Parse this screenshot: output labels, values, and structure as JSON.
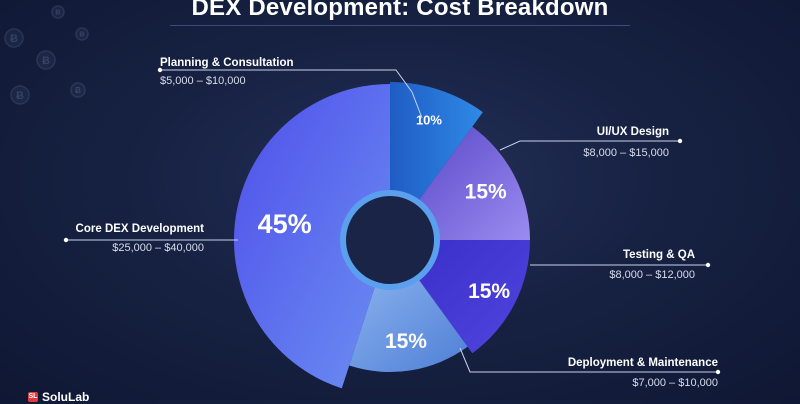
{
  "chart_data": {
    "type": "pie",
    "title": "DEX Development: Cost Breakdown",
    "slices": [
      {
        "name": "Planning & Consultation",
        "range": "$5,000 – $10,000",
        "value": 10,
        "label": "10%",
        "color": "#2c6fd6"
      },
      {
        "name": "UI/UX Design",
        "range": "$8,000 – $15,000",
        "value": 15,
        "label": "15%",
        "color": "#7b67e0"
      },
      {
        "name": "Testing & QA",
        "range": "$8,000 – $12,000",
        "value": 15,
        "label": "15%",
        "color": "#4a3fd9"
      },
      {
        "name": "Deployment & Maintenance",
        "range": "$7,000 – $10,000",
        "value": 15,
        "label": "15%",
        "color": "#6e9ee6"
      },
      {
        "name": "Core DEX Development",
        "range": "$25,000 – $40,000",
        "value": 45,
        "label": "45%",
        "color": "#5b6ef0"
      }
    ],
    "legend": "callouts"
  },
  "decor": {
    "coin_symbol": "Ƀ"
  },
  "brand": {
    "mark_icon": "brand-mark-icon",
    "name": "SoluLab"
  }
}
